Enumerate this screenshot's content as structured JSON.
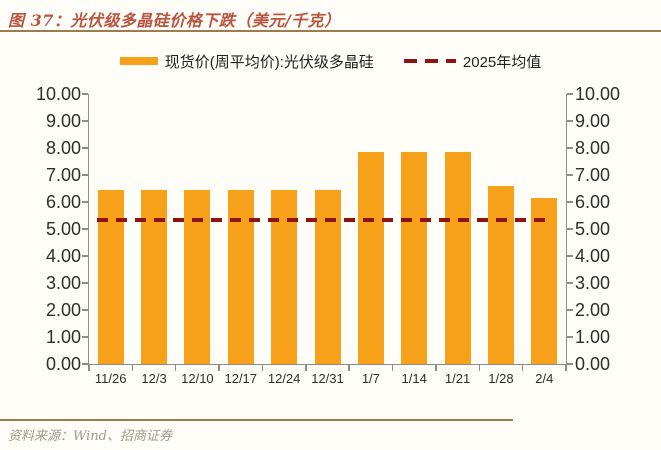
{
  "header": {
    "title": "图 37：光伏级多晶硅价格下跌（美元/千克）"
  },
  "legend": {
    "series1_label": "现货价(周平均价):光伏级多晶硅",
    "series2_label": "2025年均值"
  },
  "chart_data": {
    "type": "bar",
    "title": "光伏级多晶硅价格下跌（美元/千克）",
    "categories": [
      "11/26",
      "12/3",
      "12/10",
      "12/17",
      "12/24",
      "12/31",
      "1/7",
      "1/14",
      "1/21",
      "1/28",
      "2/4"
    ],
    "series": [
      {
        "name": "现货价(周平均价):光伏级多晶硅",
        "type": "bar",
        "color": "#F7A11B",
        "values": [
          6.45,
          6.45,
          6.45,
          6.45,
          6.45,
          6.45,
          7.85,
          7.85,
          7.85,
          6.6,
          6.15
        ]
      },
      {
        "name": "2025年均值",
        "type": "dashed-horizontal-line",
        "color": "#8B1412",
        "value": 5.35
      }
    ],
    "xlabel": "",
    "ylabel": "",
    "ylim": [
      0,
      10
    ],
    "ytick_step": 1,
    "ytick_decimals": 2,
    "grid": false,
    "mirrored_y_axis": true,
    "legend_position": "top"
  },
  "footer": {
    "source": "资料来源：Wind、招商证券"
  },
  "colors": {
    "bar": "#F7A11B",
    "avg_line": "#8B1412",
    "title": "#B9543F",
    "rule": "#9C7C4C",
    "footer_text": "#A19889",
    "axis": "#8c8c8c",
    "tick_label": "#2e2e2e"
  }
}
